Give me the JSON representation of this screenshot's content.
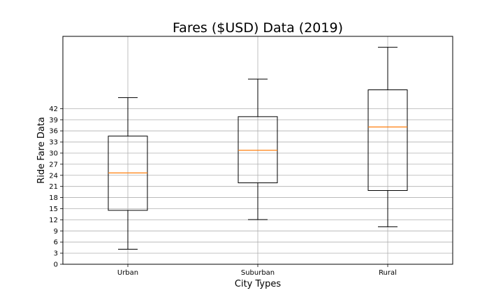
{
  "chart_data": {
    "type": "box",
    "title": "Fares ($USD) Data (2019)",
    "xlabel": "City Types",
    "ylabel": "Ride Fare Data",
    "categories": [
      "Urban",
      "Suburban",
      "Rural"
    ],
    "yticks": [
      0,
      3,
      6,
      9,
      12,
      15,
      18,
      21,
      24,
      27,
      30,
      33,
      36,
      39,
      42
    ],
    "ylim": [
      0,
      61.5
    ],
    "grid": true,
    "boxes": [
      {
        "name": "Urban",
        "whisker_low": 4.05,
        "q1": 14.55,
        "median": 24.64,
        "q3": 34.58,
        "whisker_high": 44.97
      },
      {
        "name": "Suburban",
        "whisker_low": 12.05,
        "q1": 21.97,
        "median": 30.75,
        "q3": 39.83,
        "whisker_high": 49.96
      },
      {
        "name": "Rural",
        "whisker_low": 10.11,
        "q1": 19.9,
        "median": 37.05,
        "q3": 47.07,
        "whisker_high": 58.55
      }
    ],
    "colors": {
      "box": "#000000",
      "median": "#ff7f0e",
      "grid": "#b0b0b0"
    }
  }
}
